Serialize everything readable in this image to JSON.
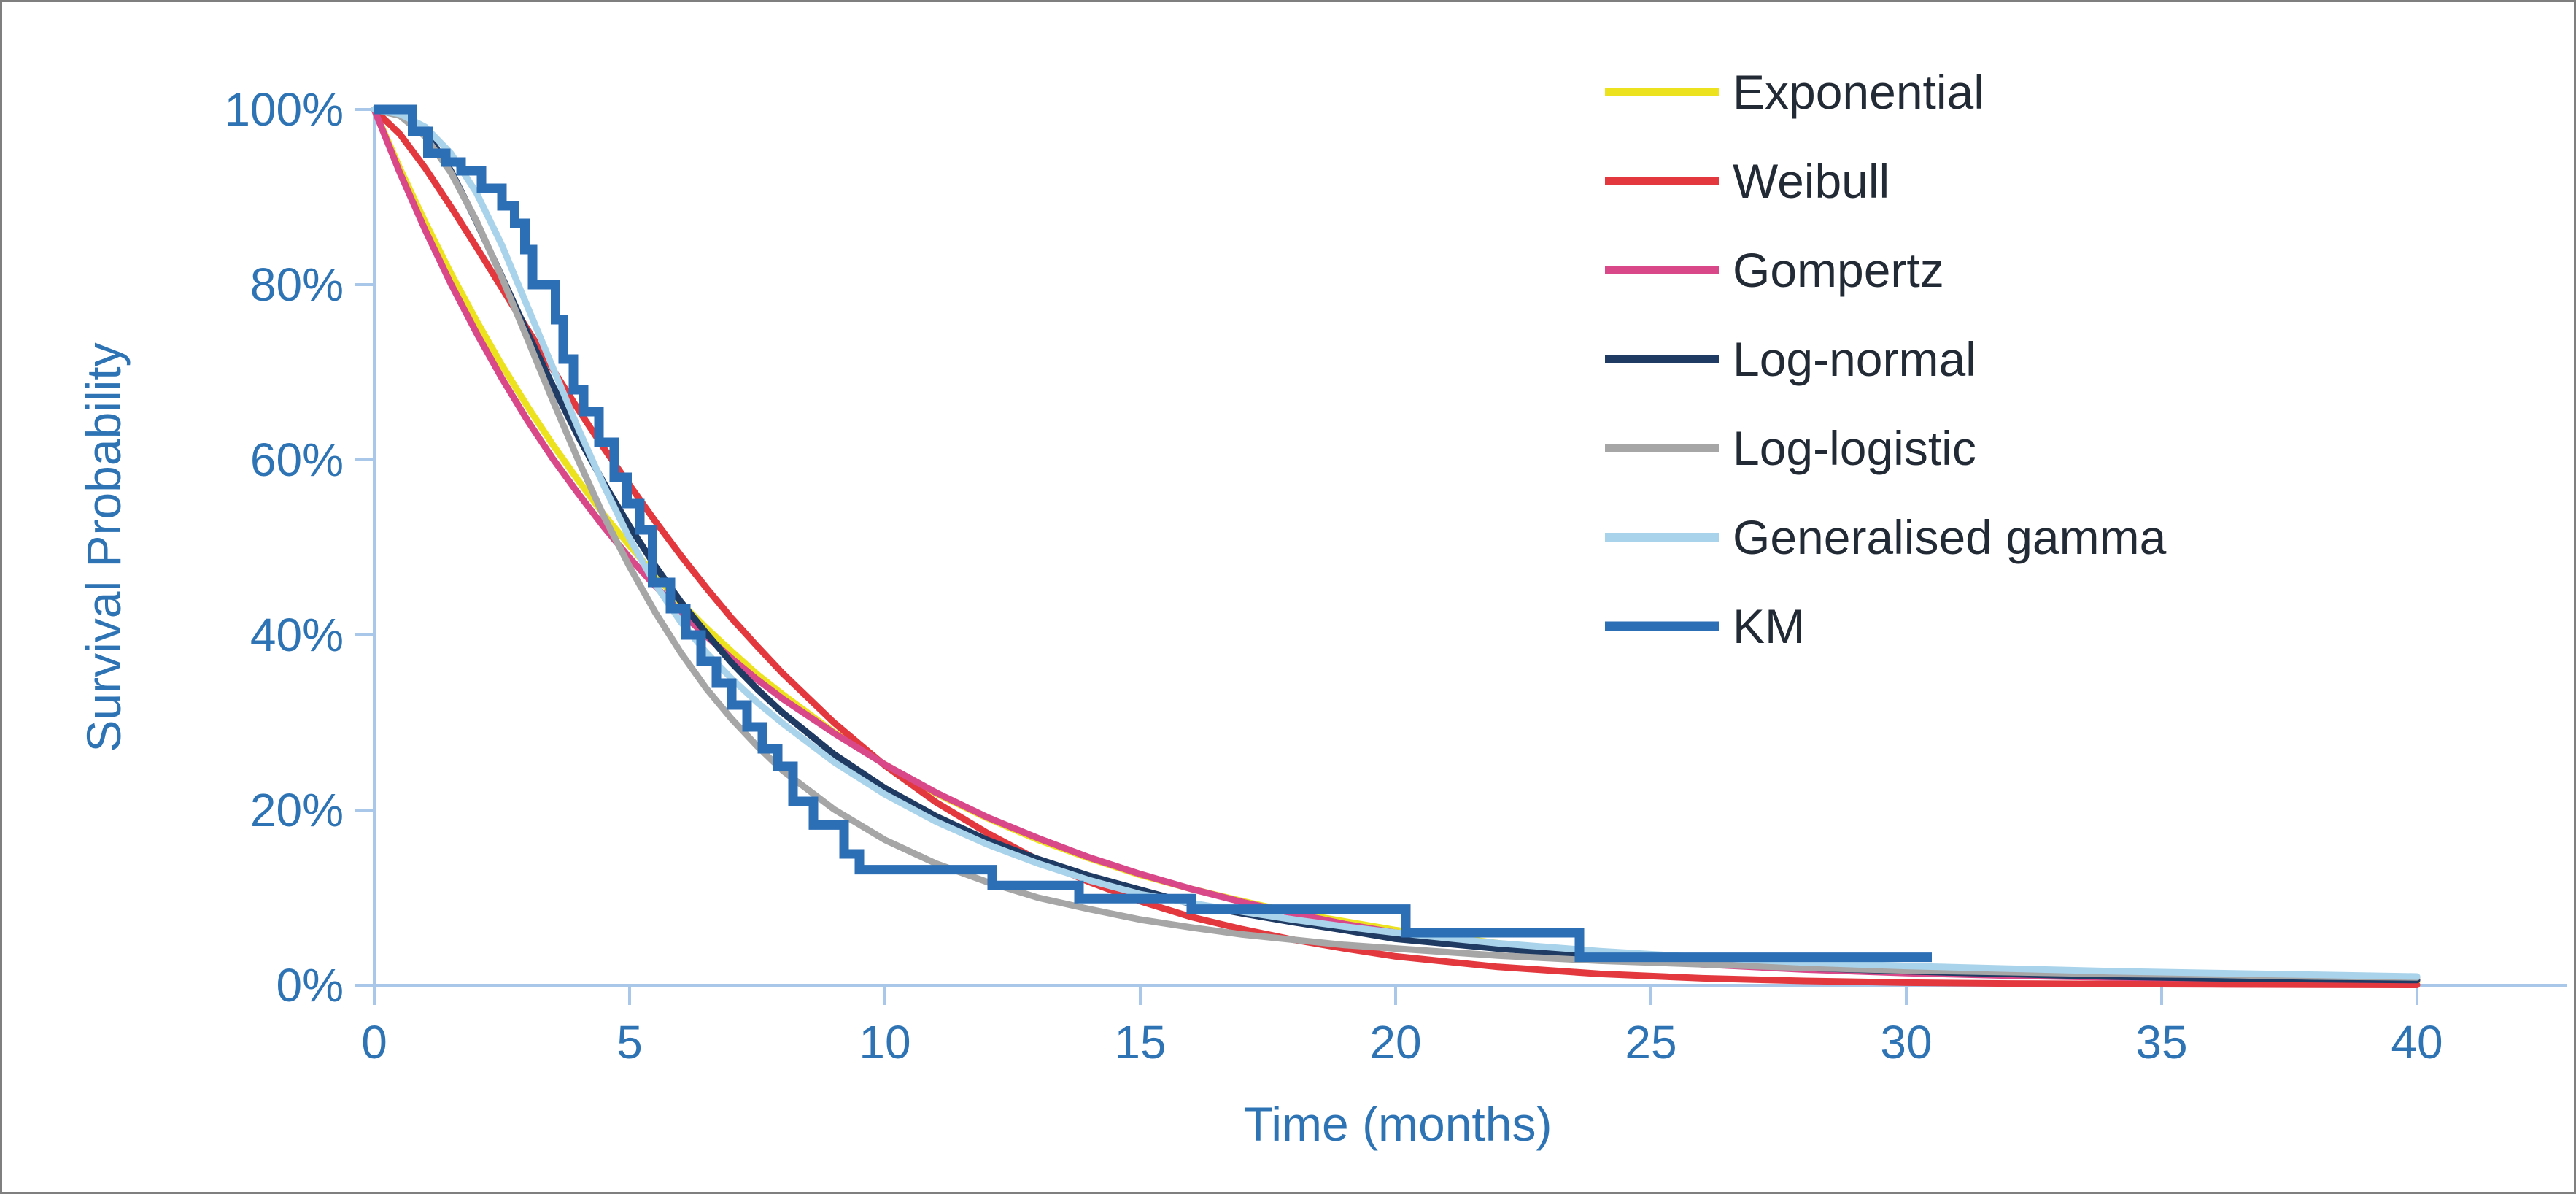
{
  "frame": {
    "background": "#ffffff",
    "border_color": "#7f7f7f"
  },
  "chart_data": {
    "type": "line",
    "title": "",
    "xlabel": "Time (months)",
    "ylabel": "Survival Probability",
    "grid": false,
    "legend_position": "right",
    "axis_color": "#A9C7E9",
    "tick_label_color": "#2E74B5",
    "legend_text_color": "#222A35",
    "x_axis": {
      "min": 0,
      "max": 40,
      "ticks": [
        0,
        5,
        10,
        15,
        20,
        25,
        30,
        35,
        40
      ],
      "tick_labels": [
        "0",
        "5",
        "10",
        "15",
        "20",
        "25",
        "30",
        "35",
        "40"
      ]
    },
    "y_axis": {
      "min": 0,
      "max": 100,
      "ticks": [
        0,
        20,
        40,
        60,
        80,
        100
      ],
      "tick_labels": [
        "0%",
        "20%",
        "40%",
        "60%",
        "80%",
        "100%"
      ]
    },
    "series": [
      {
        "name": "Exponential",
        "color": "#EDE21E",
        "style": "line",
        "points": [
          [
            0,
            100
          ],
          [
            0.5,
            93.3
          ],
          [
            1,
            87.1
          ],
          [
            1.5,
            81.3
          ],
          [
            2,
            75.9
          ],
          [
            2.5,
            70.8
          ],
          [
            3,
            66.1
          ],
          [
            3.5,
            61.7
          ],
          [
            4,
            57.6
          ],
          [
            4.5,
            53.7
          ],
          [
            5,
            50.2
          ],
          [
            5.5,
            46.8
          ],
          [
            6,
            43.7
          ],
          [
            6.5,
            40.8
          ],
          [
            7,
            38.1
          ],
          [
            7.5,
            35.5
          ],
          [
            8,
            33.2
          ],
          [
            9,
            28.9
          ],
          [
            10,
            25.2
          ],
          [
            11,
            21.9
          ],
          [
            12,
            19.1
          ],
          [
            13,
            16.6
          ],
          [
            14,
            14.5
          ],
          [
            15,
            12.6
          ],
          [
            16,
            11
          ],
          [
            17,
            9.6
          ],
          [
            18,
            8.3
          ],
          [
            19,
            7.3
          ],
          [
            20,
            6.3
          ],
          [
            22,
            4.8
          ],
          [
            24,
            3.6
          ],
          [
            26,
            2.8
          ],
          [
            28,
            2.1
          ],
          [
            30,
            1.6
          ],
          [
            32,
            1.2
          ],
          [
            34,
            0.9
          ],
          [
            36,
            0.7
          ],
          [
            38,
            0.5
          ],
          [
            40,
            0.4
          ]
        ]
      },
      {
        "name": "Weibull",
        "color": "#E2383E",
        "style": "line",
        "points": [
          [
            0,
            100
          ],
          [
            0.5,
            97.2
          ],
          [
            1,
            93.3
          ],
          [
            1.5,
            88.9
          ],
          [
            2,
            84.3
          ],
          [
            2.5,
            79.6
          ],
          [
            3,
            74.9
          ],
          [
            3.5,
            70.3
          ],
          [
            4,
            65.7
          ],
          [
            4.5,
            61.3
          ],
          [
            5,
            57.1
          ],
          [
            5.5,
            53
          ],
          [
            6,
            49.1
          ],
          [
            6.5,
            45.4
          ],
          [
            7,
            41.9
          ],
          [
            7.5,
            38.7
          ],
          [
            8,
            35.6
          ],
          [
            9,
            30
          ],
          [
            10,
            25.1
          ],
          [
            11,
            20.9
          ],
          [
            12,
            17.4
          ],
          [
            13,
            14.3
          ],
          [
            14,
            11.8
          ],
          [
            15,
            9.6
          ],
          [
            16,
            7.8
          ],
          [
            17,
            6.4
          ],
          [
            18,
            5.2
          ],
          [
            19,
            4.2
          ],
          [
            20,
            3.3
          ],
          [
            22,
            2.1
          ],
          [
            24,
            1.3
          ],
          [
            26,
            0.8
          ],
          [
            28,
            0.5
          ],
          [
            30,
            0.3
          ],
          [
            32,
            0.2
          ],
          [
            34,
            0.15
          ],
          [
            36,
            0.1
          ],
          [
            38,
            0.06
          ],
          [
            40,
            0.04
          ]
        ]
      },
      {
        "name": "Gompertz",
        "color": "#D9498A",
        "style": "line",
        "points": [
          [
            0,
            100
          ],
          [
            0.5,
            92.8
          ],
          [
            1,
            86.2
          ],
          [
            1.5,
            80.1
          ],
          [
            2,
            74.5
          ],
          [
            2.5,
            69.3
          ],
          [
            3,
            64.5
          ],
          [
            3.5,
            60.1
          ],
          [
            4,
            56.1
          ],
          [
            4.5,
            52.3
          ],
          [
            5,
            48.8
          ],
          [
            5.5,
            45.6
          ],
          [
            6,
            42.6
          ],
          [
            6.5,
            39.9
          ],
          [
            7,
            37.3
          ],
          [
            7.5,
            34.9
          ],
          [
            8,
            32.7
          ],
          [
            9,
            28.8
          ],
          [
            10,
            25.2
          ],
          [
            11,
            22
          ],
          [
            12,
            19.2
          ],
          [
            13,
            16.8
          ],
          [
            14,
            14.6
          ],
          [
            15,
            12.7
          ],
          [
            16,
            11
          ],
          [
            17,
            9.5
          ],
          [
            18,
            8.2
          ],
          [
            19,
            7
          ],
          [
            20,
            6
          ],
          [
            22,
            4.4
          ],
          [
            24,
            3.2
          ],
          [
            26,
            2.4
          ],
          [
            28,
            1.8
          ],
          [
            30,
            1.4
          ],
          [
            32,
            1.1
          ],
          [
            34,
            0.9
          ],
          [
            36,
            0.8
          ],
          [
            38,
            0.7
          ],
          [
            40,
            0.6
          ]
        ]
      },
      {
        "name": "Log-normal",
        "color": "#1F3A63",
        "style": "line",
        "points": [
          [
            0,
            100
          ],
          [
            0.5,
            99.7
          ],
          [
            1,
            97.5
          ],
          [
            1.5,
            93
          ],
          [
            2,
            87.2
          ],
          [
            2.5,
            80.9
          ],
          [
            3,
            74.5
          ],
          [
            3.5,
            68.4
          ],
          [
            4,
            62.6
          ],
          [
            4.5,
            57.3
          ],
          [
            5,
            52.4
          ],
          [
            5.5,
            47.9
          ],
          [
            6,
            43.8
          ],
          [
            6.5,
            40.2
          ],
          [
            7,
            36.8
          ],
          [
            7.5,
            33.8
          ],
          [
            8,
            31.1
          ],
          [
            9,
            26.4
          ],
          [
            10,
            22.5
          ],
          [
            11,
            19.3
          ],
          [
            12,
            16.6
          ],
          [
            13,
            14.4
          ],
          [
            14,
            12.5
          ],
          [
            15,
            10.9
          ],
          [
            16,
            9.3
          ],
          [
            17,
            8.2
          ],
          [
            18,
            7.2
          ],
          [
            19,
            6.3
          ],
          [
            20,
            5.3
          ],
          [
            22,
            4.2
          ],
          [
            24,
            3.3
          ],
          [
            26,
            2.6
          ],
          [
            28,
            2
          ],
          [
            30,
            1.6
          ],
          [
            32,
            1.3
          ],
          [
            34,
            1
          ],
          [
            36,
            0.8
          ],
          [
            38,
            0.7
          ],
          [
            40,
            0.6
          ]
        ]
      },
      {
        "name": "Log-logistic",
        "color": "#A6A6A6",
        "style": "line",
        "points": [
          [
            0,
            100
          ],
          [
            0.5,
            99.3
          ],
          [
            1,
            96.9
          ],
          [
            1.5,
            92.8
          ],
          [
            2,
            87.3
          ],
          [
            2.5,
            80.8
          ],
          [
            3,
            73.8
          ],
          [
            3.5,
            66.7
          ],
          [
            4,
            59.9
          ],
          [
            4.5,
            53.5
          ],
          [
            5,
            47.8
          ],
          [
            5.5,
            42.6
          ],
          [
            6,
            38
          ],
          [
            6.5,
            33.9
          ],
          [
            7,
            30.4
          ],
          [
            7.5,
            27.3
          ],
          [
            8,
            24.5
          ],
          [
            9,
            20.1
          ],
          [
            10,
            16.6
          ],
          [
            11,
            13.9
          ],
          [
            12,
            11.8
          ],
          [
            13,
            10
          ],
          [
            14,
            8.7
          ],
          [
            15,
            7.5
          ],
          [
            16,
            6.6
          ],
          [
            17,
            5.8
          ],
          [
            18,
            5.2
          ],
          [
            19,
            4.6
          ],
          [
            20,
            4.2
          ],
          [
            22,
            3.4
          ],
          [
            24,
            2.8
          ],
          [
            26,
            2.4
          ],
          [
            28,
            2
          ],
          [
            30,
            1.7
          ],
          [
            32,
            1.5
          ],
          [
            34,
            1.3
          ],
          [
            36,
            1.2
          ],
          [
            38,
            1
          ],
          [
            40,
            0.9
          ]
        ]
      },
      {
        "name": "Generalised gamma",
        "color": "#A9D3EA",
        "style": "line",
        "points": [
          [
            0,
            100
          ],
          [
            0.5,
            99.5
          ],
          [
            1,
            98
          ],
          [
            1.5,
            95
          ],
          [
            2,
            90.5
          ],
          [
            2.5,
            84.5
          ],
          [
            3,
            77.5
          ],
          [
            3.5,
            70.5
          ],
          [
            4,
            63.5
          ],
          [
            4.5,
            57
          ],
          [
            5,
            51
          ],
          [
            5.5,
            45.8
          ],
          [
            6,
            41.5
          ],
          [
            6.5,
            38
          ],
          [
            7,
            35
          ],
          [
            7.5,
            32.3
          ],
          [
            8,
            29.9
          ],
          [
            9,
            25.5
          ],
          [
            10,
            21.8
          ],
          [
            11,
            18.7
          ],
          [
            12,
            16.1
          ],
          [
            13,
            13.9
          ],
          [
            14,
            12
          ],
          [
            15,
            10.4
          ],
          [
            16,
            9.4
          ],
          [
            17,
            8.4
          ],
          [
            18,
            7.5
          ],
          [
            19,
            6.7
          ],
          [
            20,
            6
          ],
          [
            22,
            4.8
          ],
          [
            24,
            3.9
          ],
          [
            26,
            3.2
          ],
          [
            28,
            2.6
          ],
          [
            30,
            2.2
          ],
          [
            32,
            1.9
          ],
          [
            34,
            1.6
          ],
          [
            36,
            1.4
          ],
          [
            38,
            1.2
          ],
          [
            40,
            1
          ]
        ]
      },
      {
        "name": "KM",
        "color": "#2D6FB5",
        "style": "step",
        "points": [
          [
            0,
            100
          ],
          [
            0.75,
            97.5
          ],
          [
            1.05,
            95
          ],
          [
            1.4,
            94
          ],
          [
            1.7,
            93
          ],
          [
            2.1,
            91
          ],
          [
            2.5,
            89
          ],
          [
            2.75,
            87
          ],
          [
            2.95,
            84
          ],
          [
            3.1,
            80
          ],
          [
            3.55,
            76
          ],
          [
            3.7,
            71.5
          ],
          [
            3.9,
            68
          ],
          [
            4.1,
            65.5
          ],
          [
            4.4,
            62
          ],
          [
            4.7,
            58
          ],
          [
            4.95,
            55
          ],
          [
            5.2,
            52
          ],
          [
            5.45,
            46
          ],
          [
            5.8,
            43
          ],
          [
            6.1,
            40
          ],
          [
            6.4,
            37
          ],
          [
            6.7,
            34.5
          ],
          [
            7,
            32
          ],
          [
            7.3,
            29.5
          ],
          [
            7.6,
            27
          ],
          [
            7.9,
            25
          ],
          [
            8.2,
            21
          ],
          [
            8.6,
            18.3
          ],
          [
            9.2,
            15
          ],
          [
            9.5,
            13.2
          ],
          [
            12.1,
            11.4
          ],
          [
            13.8,
            9.9
          ],
          [
            16,
            8.7
          ],
          [
            20.2,
            6
          ],
          [
            23.6,
            3.2
          ],
          [
            30.5,
            3.2
          ]
        ]
      }
    ]
  }
}
